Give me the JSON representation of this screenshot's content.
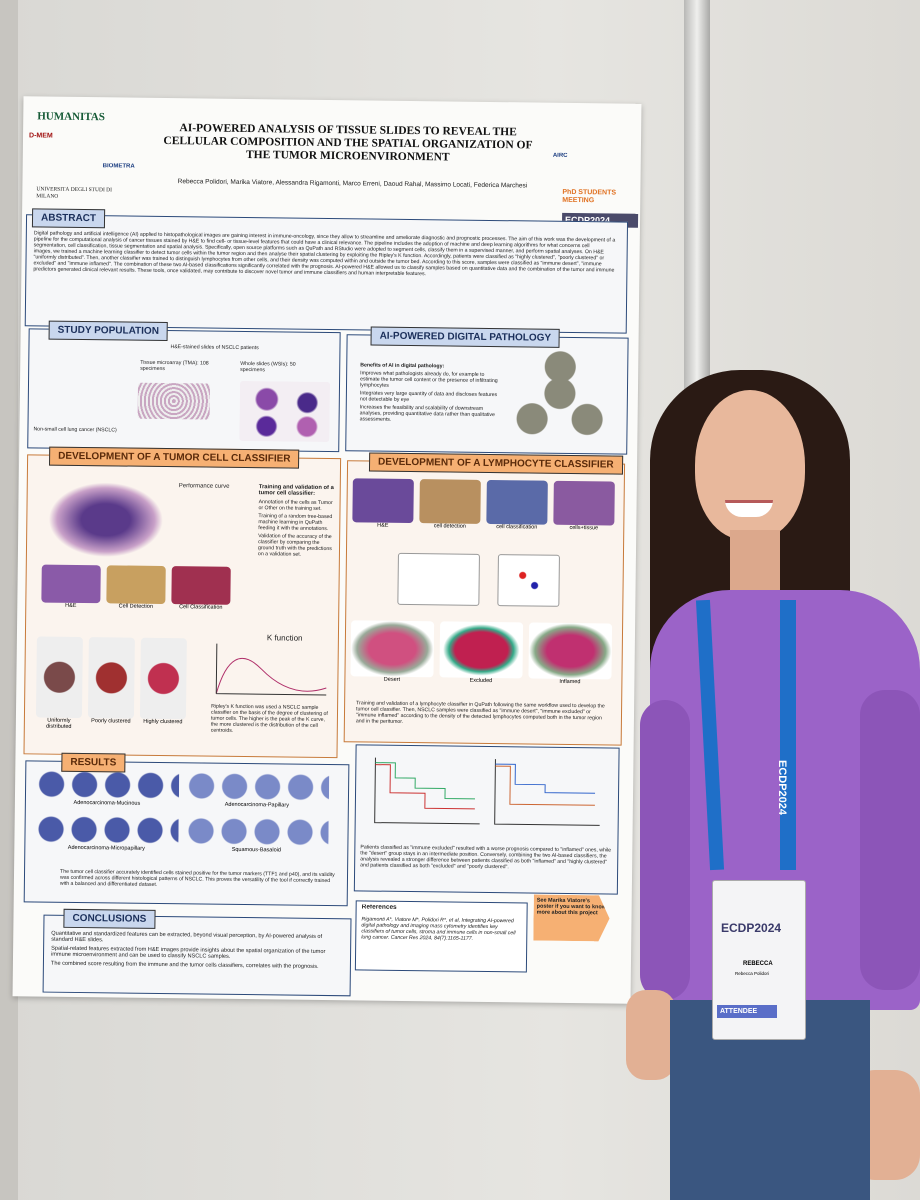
{
  "poster": {
    "title": "AI-POWERED ANALYSIS OF TISSUE SLIDES TO REVEAL THE CELLULAR COMPOSITION AND THE SPATIAL ORGANIZATION OF THE TUMOR MICROENVIRONMENT",
    "authors": "Rebecca Polidori, Marika Viatore, Alessandra Rigamonti, Marco Erreni, Daoud Rahal, Massimo Locati, Federica Marchesi",
    "logos": {
      "left": "HUMANITAS",
      "dmem": "D-MEM",
      "biometra": "BIOMETRA",
      "unimi": "UNIVERSITÀ DEGLI STUDI DI MILANO",
      "airc": "AIRC",
      "phd": "PhD STUDENTS MEETING",
      "ecdp": "ECDP2024"
    },
    "abstract": {
      "heading": "ABSTRACT",
      "text": "Digital pathology and artificial intelligence (AI) applied to histopathological images are gaining interest in immune-oncology, since they allow to streamline and ameliorate diagnostic and prognostic processes. The aim of this work was the development of a pipeline for the computational analysis of cancer tissues stained by H&E to find cell- or tissue-level features that could have a clinical relevance. The pipeline includes the adoption of machine and deep learning algorithms for what concerns cell segmentation, cell classification, tissue segmentation and spatial analysis. Specifically, open source platforms such as QuPath and RStudio were adopted to segment cells, classify them in a supervised manner, and perform spatial analyses. On H&E images, we trained a machine learning classifier to detect tumor cells within the tumor region and then analyse their spatial clustering by exploiting the Ripley's K function. Accordingly, patients were classified as \"highly clustered\", \"poorly clustered\" or \"uniformly distributed\". Then, another classifier was trained to distinguish lymphocytes from other cells, and their density was computed within and outside the tumor bed. According to this score, samples were classified as \"immune desert\", \"immune excluded\" and \"immune inflamed\". The combination of these two AI-based classifications significantly correlated with the prognosis. AI-powered H&E allowed us to classify samples based on quantitative data and the combination of the tumor and immune predictors generated clinical relevant results. These tools, once validated, may contribute to discover novel tumor and immune classifiers and human interpretable features."
    },
    "study": {
      "heading": "STUDY POPULATION",
      "subtitle": "H&E-stained slides of NSCLC patients",
      "tma": "Tissue microarray (TMA): 108 specimens",
      "wsi": "Whole slides (WSIs): 50 specimens",
      "patient": "Non-small cell lung cancer (NSCLC)"
    },
    "ai": {
      "heading": "AI-POWERED DIGITAL PATHOLOGY",
      "lead": "Benefits of AI in digital pathology:",
      "items": [
        "Improves what pathologists already do, for example to estimate the tumor cell content or the presence of infiltrating lymphocytes",
        "Integrates very large quantity of data and discloses features not detectable by eye",
        "Increases the feasibility and scalability of downstream analyses, providing quantitative data rather than qualitative assessments."
      ]
    },
    "tumor": {
      "heading": "DEVELOPMENT OF A TUMOR CELL CLASSIFIER",
      "lead": "Training and validation of a tumor cell classifier:",
      "items": [
        "Annotation of the cells as Tumor or Other on the training set.",
        "Training of a random tree-based machine learning in QuPath feeding it with the annotations.",
        "Validation of the accuracy of the classifier by comparing the ground truth with the predictions on a validation set."
      ],
      "perf": "Performance curve",
      "kfunc": "K function",
      "steps": [
        "H&E",
        "Cell Detection",
        "Cell Classification"
      ],
      "groups": [
        "Uniformly distributed",
        "Poorly clustered",
        "Highly clustered"
      ],
      "caption": "Ripley's K function was used a NSCLC sample classifier on the basis of the degree of clustering of tumor cells. The higher is the peak of the K curve, the more clustered is the distribution of the cell centroids."
    },
    "lymph": {
      "heading": "DEVELOPMENT OF A LYMPHOCYTE CLASSIFIER",
      "panels": [
        "H&E",
        "cell detection",
        "cell classification",
        "cells+tissue"
      ],
      "classes": [
        "Desert",
        "Excluded",
        "Inflamed"
      ],
      "caption": "Training and validation of a lymphocyte classifier in QuPath following the same workflow used to develop the tumor cell classifier. Then, NSCLC samples were classified as \"immune desert\", \"immune excluded\" or \"immune inflamed\" according to the density of the detected lymphocytes computed both in the tumor region and in the peritumor."
    },
    "results": {
      "heading": "RESULTS",
      "types": [
        "Adenocarcinoma-Mucinous",
        "Adenocarcinoma-Papillary",
        "Adenocarcinoma-Micropapillary",
        "Squamous-Basaloid"
      ],
      "text": "The tumor cell classifier accurately identified cells stained positive for the tumor markers (TTF1 and p40), and its validity was confirmed across different histological patterns of NSCLC. This proves the versatility of the tool if correctly trained with a balanced and differentiated dataset.",
      "survival": "Patients classified as \"immune excluded\" resulted with a worse prognosis compared to \"inflamed\" ones, while the \"desert\" group stays in an intermediate position. Conversely, combining the two AI-based classifiers, the analysis revealed a stronger difference between patients classified as both \"inflamed\" and \"highly clustered\" and patients classified as both \"excluded\" and \"poorly clustered\"."
    },
    "conclusions": {
      "heading": "CONCLUSIONS",
      "items": [
        "Quantitative and standardized features can be extracted, beyond visual perception, by AI-powered analysis of standard H&E slides.",
        "Spatial-related features extracted from H&E images provide insights about the spatial organization of the tumor immune microenvironment and can be used to classify NSCLC samples.",
        "The combined score resulting from the immune and the tumor cells classifiers, correlates with the prognosis."
      ]
    },
    "references": {
      "heading": "References",
      "text": "Rigamonti A*, Viatore M*, Polidori R*, et al, Integrating AI-powered digital pathology and imaging mass cytometry identifies key classifiers of tumor cells, stroma and immune cells in non-small cell lung cancer. Cancer Res 2024, 84(7):1165-1177."
    },
    "arrow": "See Marika Viatore's poster if you want to know more about this project"
  },
  "badge": {
    "event": "ECDP2024",
    "name": "REBECCA",
    "person": "Rebecca Polidori",
    "role": "ATTENDEE",
    "lanyard": "ECDP2024"
  }
}
